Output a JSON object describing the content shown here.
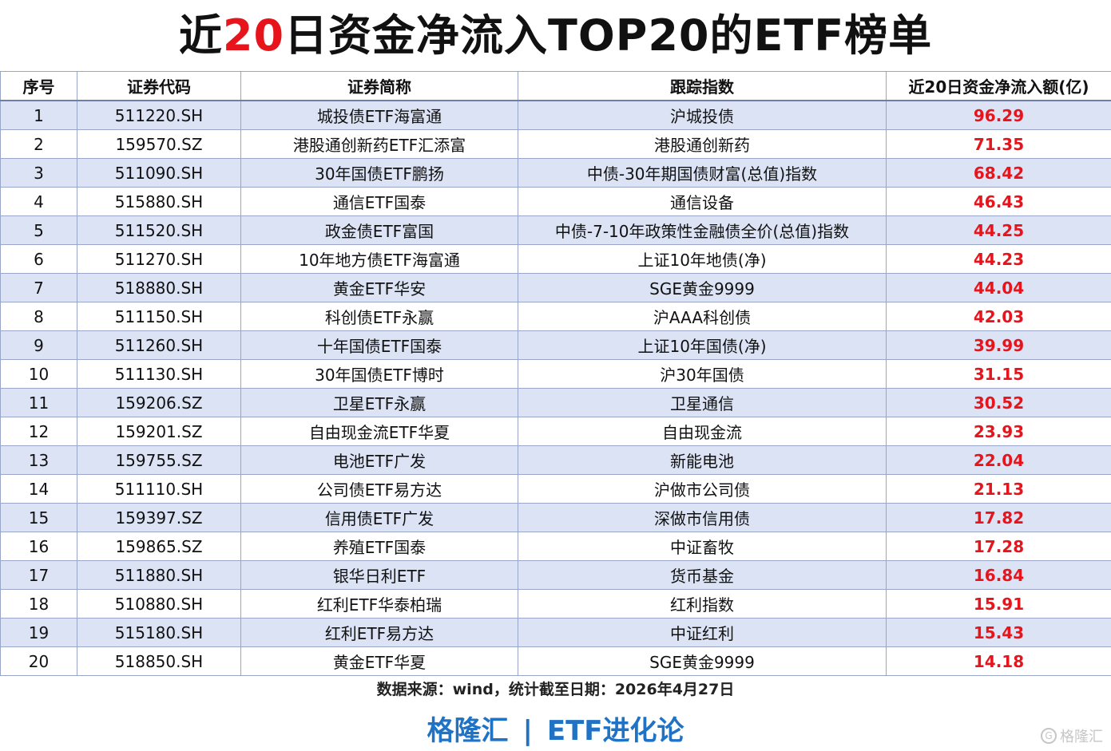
{
  "title": {
    "pre": "近",
    "highlight": "20",
    "post": "日资金净流入TOP20的ETF榜单"
  },
  "table": {
    "headers": [
      "序号",
      "证券代码",
      "证券简称",
      "跟踪指数",
      "近20日资金净流入额(亿)"
    ],
    "rows": [
      {
        "rank": "1",
        "code": "511220.SH",
        "name": "城投债ETF海富通",
        "index": "沪城投债",
        "value": "96.29"
      },
      {
        "rank": "2",
        "code": "159570.SZ",
        "name": "港股通创新药ETF汇添富",
        "index": "港股通创新药",
        "value": "71.35"
      },
      {
        "rank": "3",
        "code": "511090.SH",
        "name": "30年国债ETF鹏扬",
        "index": "中债-30年期国债财富(总值)指数",
        "value": "68.42"
      },
      {
        "rank": "4",
        "code": "515880.SH",
        "name": "通信ETF国泰",
        "index": "通信设备",
        "value": "46.43"
      },
      {
        "rank": "5",
        "code": "511520.SH",
        "name": "政金债ETF富国",
        "index": "中债-7-10年政策性金融债全价(总值)指数",
        "value": "44.25"
      },
      {
        "rank": "6",
        "code": "511270.SH",
        "name": "10年地方债ETF海富通",
        "index": "上证10年地债(净)",
        "value": "44.23"
      },
      {
        "rank": "7",
        "code": "518880.SH",
        "name": "黄金ETF华安",
        "index": "SGE黄金9999",
        "value": "44.04"
      },
      {
        "rank": "8",
        "code": "511150.SH",
        "name": "科创债ETF永赢",
        "index": "沪AAA科创债",
        "value": "42.03"
      },
      {
        "rank": "9",
        "code": "511260.SH",
        "name": "十年国债ETF国泰",
        "index": "上证10年国债(净)",
        "value": "39.99"
      },
      {
        "rank": "10",
        "code": "511130.SH",
        "name": "30年国债ETF博时",
        "index": "沪30年国债",
        "value": "31.15"
      },
      {
        "rank": "11",
        "code": "159206.SZ",
        "name": "卫星ETF永赢",
        "index": "卫星通信",
        "value": "30.52"
      },
      {
        "rank": "12",
        "code": "159201.SZ",
        "name": "自由现金流ETF华夏",
        "index": "自由现金流",
        "value": "23.93"
      },
      {
        "rank": "13",
        "code": "159755.SZ",
        "name": "电池ETF广发",
        "index": "新能电池",
        "value": "22.04"
      },
      {
        "rank": "14",
        "code": "511110.SH",
        "name": "公司债ETF易方达",
        "index": "沪做市公司债",
        "value": "21.13"
      },
      {
        "rank": "15",
        "code": "159397.SZ",
        "name": "信用债ETF广发",
        "index": "深做市信用债",
        "value": "17.82"
      },
      {
        "rank": "16",
        "code": "159865.SZ",
        "name": "养殖ETF国泰",
        "index": "中证畜牧",
        "value": "17.28"
      },
      {
        "rank": "17",
        "code": "511880.SH",
        "name": "银华日利ETF",
        "index": "货币基金",
        "value": "16.84"
      },
      {
        "rank": "18",
        "code": "510880.SH",
        "name": "红利ETF华泰柏瑞",
        "index": "红利指数",
        "value": "15.91"
      },
      {
        "rank": "19",
        "code": "515180.SH",
        "name": "红利ETF易方达",
        "index": "中证红利",
        "value": "15.43"
      },
      {
        "rank": "20",
        "code": "518850.SH",
        "name": "黄金ETF华夏",
        "index": "SGE黄金9999",
        "value": "14.18"
      }
    ]
  },
  "source_note": "数据来源：wind，统计截至日期：2026年4月27日",
  "brand": {
    "left": "格隆汇",
    "separator": "|",
    "right": "ETF进化论"
  },
  "watermark": {
    "icon": "g-logo-icon",
    "text": "格隆汇"
  },
  "colors": {
    "highlight_red": "#e8141c",
    "row_band_blue": "#dbe3f4",
    "brand_blue": "#1f72c4"
  }
}
